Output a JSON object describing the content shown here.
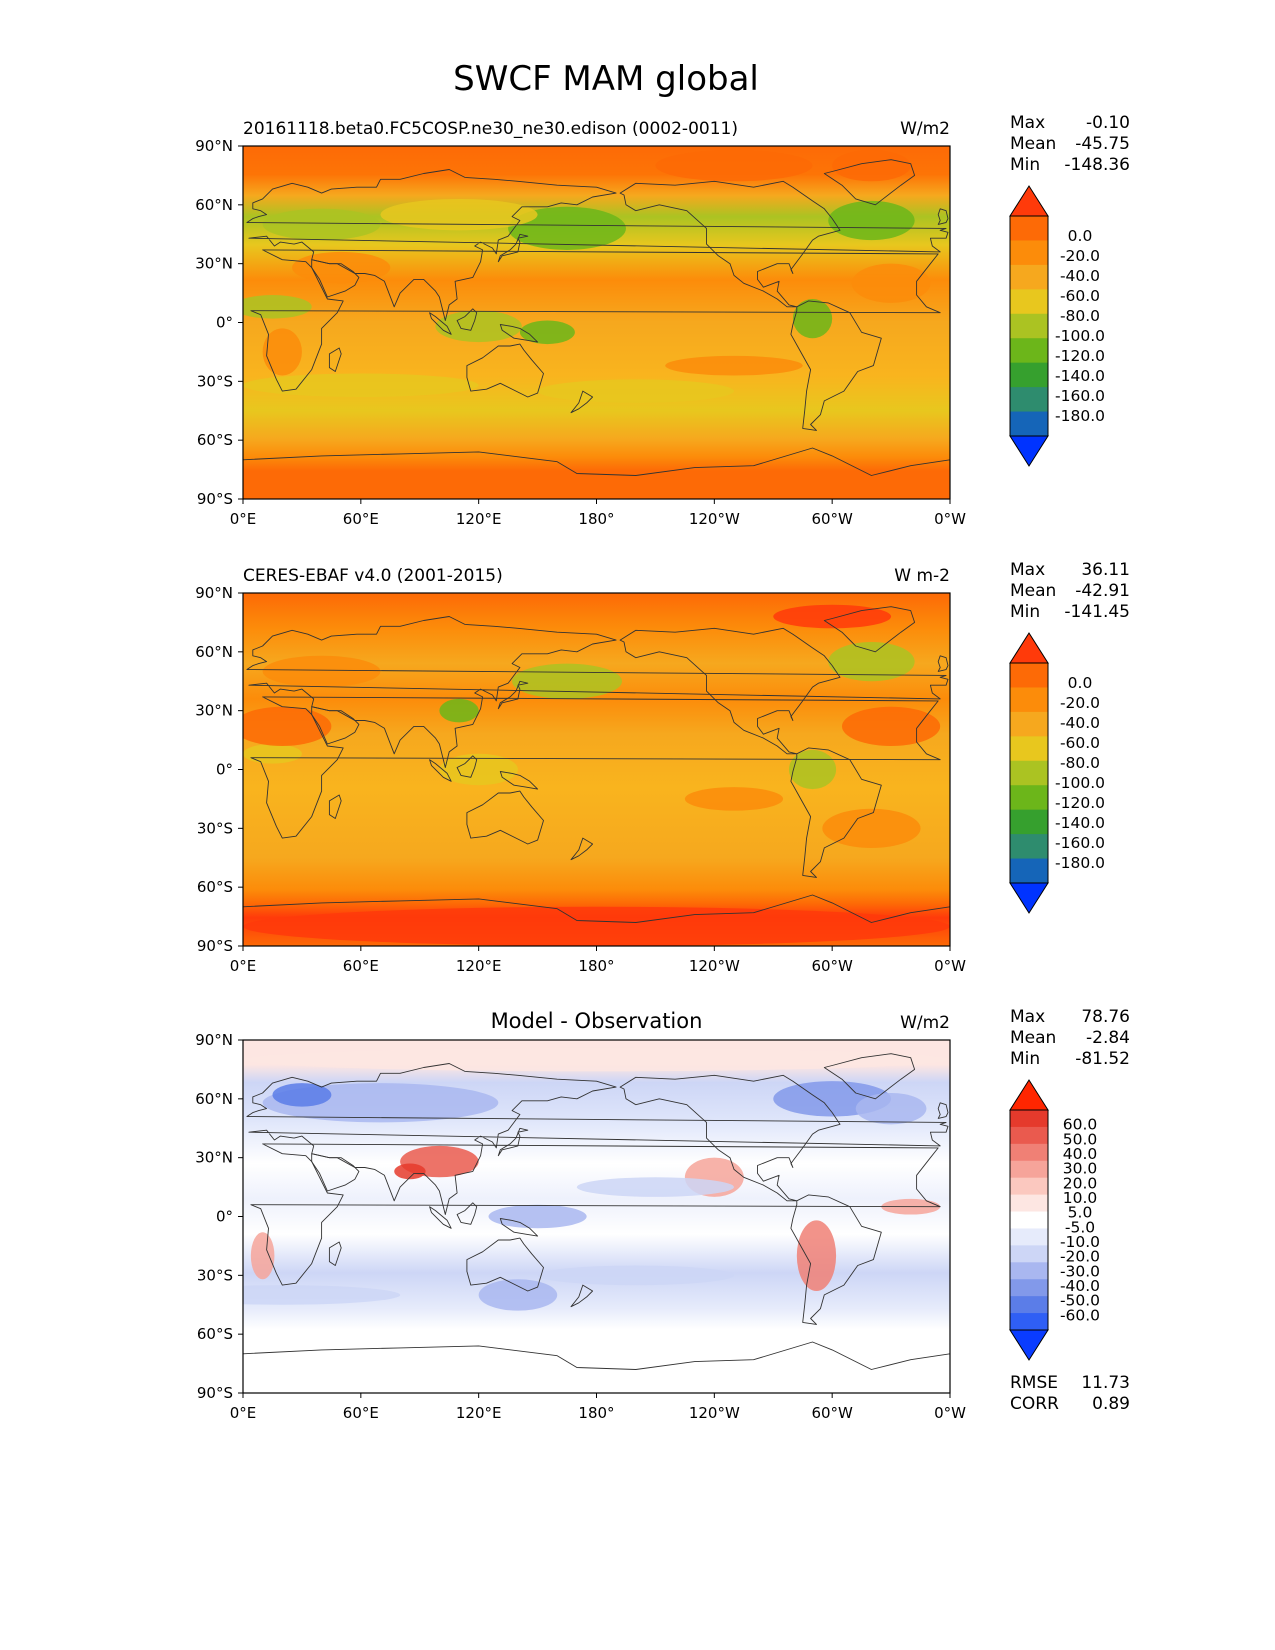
{
  "figure": {
    "title": "SWCF MAM global",
    "x_ticks": [
      "0°E",
      "60°E",
      "120°E",
      "180°",
      "120°W",
      "60°W",
      "0°W"
    ],
    "y_ticks": [
      "90°N",
      "60°N",
      "30°N",
      "0°",
      "30°S",
      "60°S",
      "90°S"
    ]
  },
  "colors": {
    "abs_colormap": [
      "#0033ff",
      "#1565b8",
      "#2e8c6e",
      "#36a02e",
      "#6cb61a",
      "#abc322",
      "#e8c71e",
      "#f6a81e",
      "#fc8c0a",
      "#fd6a06",
      "#ff3a0a"
    ],
    "diff_colormap": [
      "#0a3cff",
      "#2f5ff5",
      "#5b7de8",
      "#8299ea",
      "#a9b7f0",
      "#cdd6f6",
      "#e6ebfb",
      "#ffffff",
      "#fde6e2",
      "#fbc8bf",
      "#f6a49a",
      "#f08075",
      "#ea5a4e",
      "#e53a2c",
      "#ff2600"
    ],
    "coastline": "#333333"
  },
  "panels": [
    {
      "id": "model",
      "left_title": "20161118.beta0.FC5COSP.ne30_ne30.edison (0002-0011)",
      "center_title": "",
      "units": "W/m2",
      "stats": {
        "max_label": "Max",
        "max": "-0.10",
        "mean_label": "Mean",
        "mean": "-45.75",
        "min_label": "Min",
        "min": "-148.36"
      },
      "colorbar_labels": [
        "0.0",
        "-20.0",
        "-40.0",
        "-60.0",
        "-80.0",
        "-100.0",
        "-120.0",
        "-140.0",
        "-160.0",
        "-180.0"
      ]
    },
    {
      "id": "obs",
      "left_title": "CERES-EBAF v4.0 (2001-2015)",
      "center_title": "",
      "units": "W m-2",
      "stats": {
        "max_label": "Max",
        "max": "36.11",
        "mean_label": "Mean",
        "mean": "-42.91",
        "min_label": "Min",
        "min": "-141.45"
      },
      "colorbar_labels": [
        "0.0",
        "-20.0",
        "-40.0",
        "-60.0",
        "-80.0",
        "-100.0",
        "-120.0",
        "-140.0",
        "-160.0",
        "-180.0"
      ]
    },
    {
      "id": "diff",
      "left_title": "",
      "center_title": "Model - Observation",
      "units": "W/m2",
      "stats": {
        "max_label": "Max",
        "max": "78.76",
        "mean_label": "Mean",
        "mean": "-2.84",
        "min_label": "Min",
        "min": "-81.52"
      },
      "colorbar_labels": [
        "60.0",
        "50.0",
        "40.0",
        "30.0",
        "20.0",
        "10.0",
        "5.0",
        "-5.0",
        "-10.0",
        "-20.0",
        "-30.0",
        "-40.0",
        "-50.0",
        "-60.0"
      ],
      "extra_stats": {
        "rmse_label": "RMSE",
        "rmse": "11.73",
        "corr_label": "CORR",
        "corr": "0.89"
      }
    }
  ]
}
